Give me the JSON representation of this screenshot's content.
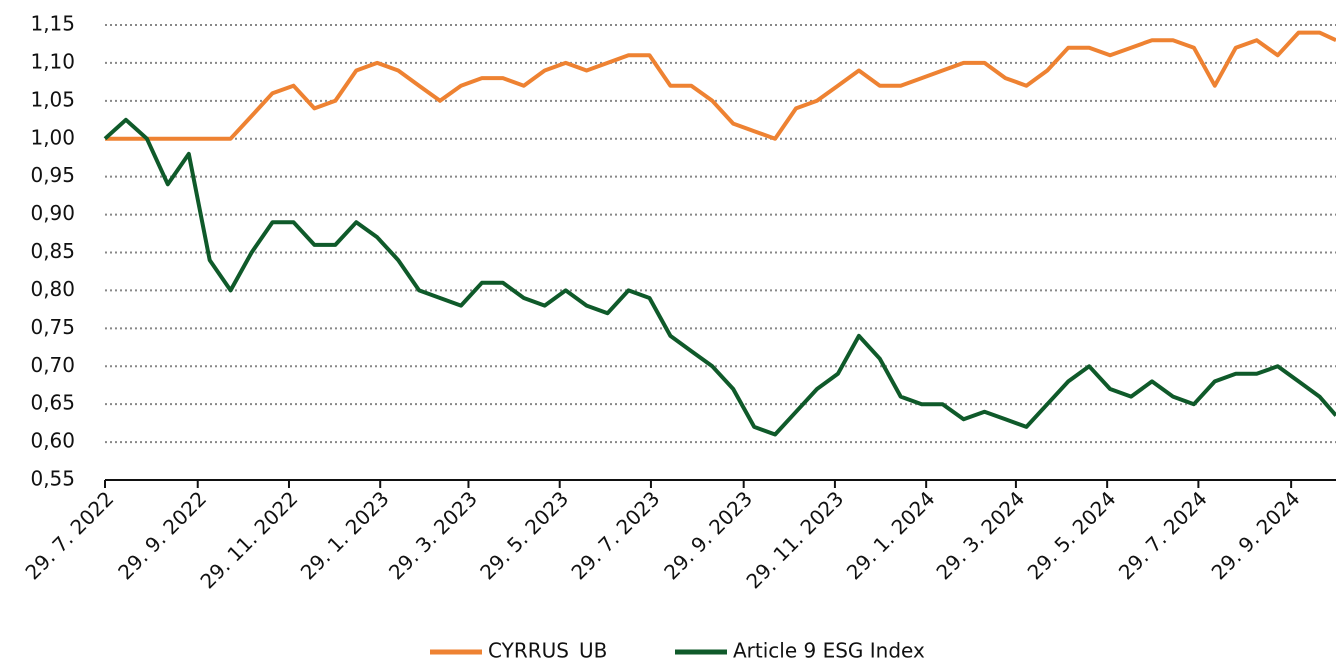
{
  "chart_data": {
    "type": "line",
    "x": [
      "2022-07-29",
      "2022-08-12",
      "2022-08-26",
      "2022-09-09",
      "2022-09-23",
      "2022-10-07",
      "2022-10-21",
      "2022-11-04",
      "2022-11-18",
      "2022-12-02",
      "2022-12-16",
      "2022-12-30",
      "2023-01-13",
      "2023-01-27",
      "2023-02-10",
      "2023-02-24",
      "2023-03-10",
      "2023-03-24",
      "2023-04-07",
      "2023-04-21",
      "2023-05-05",
      "2023-05-19",
      "2023-06-02",
      "2023-06-16",
      "2023-06-30",
      "2023-07-14",
      "2023-07-28",
      "2023-08-11",
      "2023-08-25",
      "2023-09-08",
      "2023-09-22",
      "2023-10-06",
      "2023-10-20",
      "2023-11-03",
      "2023-11-17",
      "2023-12-01",
      "2023-12-15",
      "2023-12-29",
      "2024-01-12",
      "2024-01-26",
      "2024-02-09",
      "2024-02-23",
      "2024-03-08",
      "2024-03-22",
      "2024-04-05",
      "2024-04-19",
      "2024-05-03",
      "2024-05-17",
      "2024-05-31",
      "2024-06-14",
      "2024-06-28",
      "2024-07-12",
      "2024-07-26",
      "2024-08-09",
      "2024-08-23",
      "2024-09-06",
      "2024-09-20",
      "2024-10-04",
      "2024-10-18",
      "2024-10-29"
    ],
    "series": [
      {
        "name": "CYRRUS_UB",
        "color": "#ee8232",
        "values": [
          1.0,
          1.0,
          1.0,
          1.0,
          1.0,
          1.0,
          1.0,
          1.03,
          1.06,
          1.07,
          1.04,
          1.05,
          1.09,
          1.1,
          1.09,
          1.07,
          1.05,
          1.07,
          1.08,
          1.08,
          1.07,
          1.09,
          1.1,
          1.09,
          1.1,
          1.11,
          1.11,
          1.07,
          1.07,
          1.05,
          1.02,
          1.01,
          1.0,
          1.04,
          1.05,
          1.07,
          1.09,
          1.07,
          1.07,
          1.08,
          1.09,
          1.1,
          1.1,
          1.08,
          1.07,
          1.09,
          1.12,
          1.12,
          1.11,
          1.12,
          1.13,
          1.13,
          1.12,
          1.07,
          1.12,
          1.13,
          1.11,
          1.14,
          1.14,
          1.13
        ]
      },
      {
        "name": "Article 9 ESG Index",
        "color": "#0f5a2a",
        "values": [
          1.0,
          1.025,
          1.0,
          0.94,
          0.98,
          0.84,
          0.8,
          0.85,
          0.89,
          0.89,
          0.86,
          0.86,
          0.89,
          0.87,
          0.84,
          0.8,
          0.79,
          0.78,
          0.81,
          0.81,
          0.79,
          0.78,
          0.8,
          0.78,
          0.77,
          0.8,
          0.79,
          0.74,
          0.72,
          0.7,
          0.67,
          0.62,
          0.61,
          0.64,
          0.67,
          0.69,
          0.74,
          0.71,
          0.66,
          0.65,
          0.65,
          0.63,
          0.64,
          0.63,
          0.62,
          0.65,
          0.68,
          0.7,
          0.67,
          0.66,
          0.68,
          0.66,
          0.65,
          0.68,
          0.69,
          0.69,
          0.7,
          0.68,
          0.66,
          0.635
        ]
      }
    ],
    "xlim": [
      "2022-07-29",
      "2024-10-29"
    ],
    "xticks": [
      {
        "value": "2022-07-29",
        "label": "29. 7. 2022"
      },
      {
        "value": "2022-09-29",
        "label": "29. 9. 2022"
      },
      {
        "value": "2022-11-29",
        "label": "29. 11. 2022"
      },
      {
        "value": "2023-01-29",
        "label": "29. 1. 2023"
      },
      {
        "value": "2023-03-29",
        "label": "29. 3. 2023"
      },
      {
        "value": "2023-05-29",
        "label": "29. 5. 2023"
      },
      {
        "value": "2023-07-29",
        "label": "29. 7. 2023"
      },
      {
        "value": "2023-09-29",
        "label": "29. 9. 2023"
      },
      {
        "value": "2023-11-29",
        "label": "29. 11. 2023"
      },
      {
        "value": "2024-01-29",
        "label": "29. 1. 2024"
      },
      {
        "value": "2024-03-29",
        "label": "29. 3. 2024"
      },
      {
        "value": "2024-05-29",
        "label": "29. 5. 2024"
      },
      {
        "value": "2024-07-29",
        "label": "29. 7. 2024"
      },
      {
        "value": "2024-09-29",
        "label": "29. 9. 2024"
      }
    ],
    "ylim": [
      0.55,
      1.15
    ],
    "yticks": [
      {
        "value": 0.55,
        "label": "0,55"
      },
      {
        "value": 0.6,
        "label": "0,60"
      },
      {
        "value": 0.65,
        "label": "0,65"
      },
      {
        "value": 0.7,
        "label": "0,70"
      },
      {
        "value": 0.75,
        "label": "0,75"
      },
      {
        "value": 0.8,
        "label": "0,80"
      },
      {
        "value": 0.85,
        "label": "0,85"
      },
      {
        "value": 0.9,
        "label": "0,90"
      },
      {
        "value": 0.95,
        "label": "0,95"
      },
      {
        "value": 1.0,
        "label": "1,00"
      },
      {
        "value": 1.05,
        "label": "1,05"
      },
      {
        "value": 1.1,
        "label": "1,10"
      },
      {
        "value": 1.15,
        "label": "1,15"
      }
    ],
    "grid": true,
    "legend": "bottom"
  }
}
